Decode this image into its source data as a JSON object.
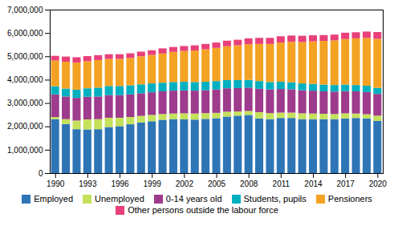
{
  "chart_data": {
    "type": "bar",
    "stacked": true,
    "legend": "bottom",
    "x": [
      1990,
      1991,
      1992,
      1993,
      1994,
      1995,
      1996,
      1997,
      1998,
      1999,
      2000,
      2001,
      2002,
      2003,
      2004,
      2005,
      2006,
      2007,
      2008,
      2009,
      2010,
      2011,
      2012,
      2013,
      2014,
      2015,
      2016,
      2017,
      2018,
      2019,
      2020
    ],
    "xlim": [
      1989.5,
      2020.5
    ],
    "xticks": [
      1990,
      1993,
      1996,
      1999,
      2002,
      2005,
      2008,
      2011,
      2014,
      2017,
      2020
    ],
    "ylim": [
      0,
      7000000
    ],
    "yticks": [
      0,
      {
        "value": 1000000,
        "label": "1,000,000"
      },
      {
        "value": 2000000,
        "label": "2,000,000"
      },
      {
        "value": 3000000,
        "label": "3,000,000"
      },
      {
        "value": 4000000,
        "label": "4,000,000"
      },
      {
        "value": 5000000,
        "label": "5,000,000"
      },
      {
        "value": 6000000,
        "label": "6,000,000"
      },
      {
        "value": 7000000,
        "label": "7,000,000"
      }
    ],
    "series": [
      {
        "name": "Employed",
        "color": "#2E75B6",
        "values": [
          2310000,
          2100000,
          1880000,
          1870000,
          1880000,
          1970000,
          2010000,
          2090000,
          2170000,
          2220000,
          2280000,
          2310000,
          2300000,
          2290000,
          2320000,
          2350000,
          2420000,
          2460000,
          2490000,
          2340000,
          2310000,
          2360000,
          2360000,
          2310000,
          2310000,
          2310000,
          2310000,
          2340000,
          2360000,
          2340000,
          2240000
        ]
      },
      {
        "name": "Unemployed",
        "color": "#C5E05A",
        "values": [
          90000,
          210000,
          370000,
          430000,
          430000,
          400000,
          360000,
          310000,
          280000,
          270000,
          250000,
          240000,
          260000,
          260000,
          250000,
          230000,
          210000,
          180000,
          170000,
          270000,
          260000,
          230000,
          230000,
          250000,
          240000,
          230000,
          220000,
          220000,
          190000,
          180000,
          220000
        ]
      },
      {
        "name": "0-14 years old",
        "color": "#9E3B8C",
        "values": [
          970000,
          970000,
          970000,
          970000,
          970000,
          970000,
          970000,
          970000,
          970000,
          970000,
          970000,
          980000,
          980000,
          980000,
          980000,
          1000000,
          1000000,
          1000000,
          1000000,
          1000000,
          1010000,
          1010000,
          1000000,
          990000,
          980000,
          960000,
          960000,
          950000,
          950000,
          950000,
          930000
        ]
      },
      {
        "name": "Students, pupils",
        "color": "#00B0C0",
        "values": [
          350000,
          340000,
          350000,
          360000,
          380000,
          390000,
          390000,
          390000,
          380000,
          380000,
          370000,
          370000,
          370000,
          370000,
          360000,
          360000,
          350000,
          340000,
          330000,
          330000,
          320000,
          310000,
          300000,
          290000,
          290000,
          290000,
          280000,
          280000,
          270000,
          270000,
          260000
        ]
      },
      {
        "name": "Pensioners",
        "color": "#F4A223",
        "values": [
          1100000,
          1150000,
          1160000,
          1160000,
          1180000,
          1160000,
          1160000,
          1170000,
          1200000,
          1220000,
          1250000,
          1290000,
          1320000,
          1350000,
          1390000,
          1420000,
          1450000,
          1490000,
          1530000,
          1590000,
          1630000,
          1680000,
          1730000,
          1770000,
          1820000,
          1870000,
          1910000,
          1950000,
          2000000,
          2050000,
          2100000
        ]
      },
      {
        "name": "Other persons outside the labour force",
        "color": "#E8407A",
        "values": [
          200000,
          220000,
          230000,
          220000,
          210000,
          200000,
          200000,
          200000,
          200000,
          200000,
          220000,
          210000,
          210000,
          220000,
          230000,
          230000,
          240000,
          240000,
          250000,
          260000,
          260000,
          270000,
          270000,
          270000,
          260000,
          250000,
          250000,
          270000,
          260000,
          270000,
          290000
        ]
      }
    ]
  }
}
